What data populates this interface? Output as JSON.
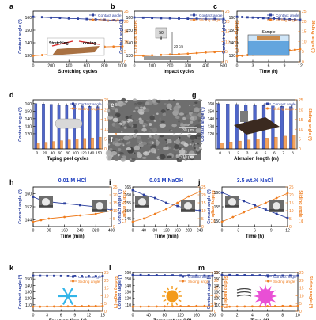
{
  "colors": {
    "contact": "#2b3f9e",
    "sliding": "#ef7d1f",
    "bar_contact": "#4f66c8",
    "bar_sliding": "#f5a35c",
    "hcl": "#1f3fbf",
    "naoh": "#1f3fbf",
    "nacl": "#1f3fbf",
    "snow": "#33b5e8",
    "sun": "#f39a1a",
    "uv": "#e94fd5",
    "water": "#3f8fd6"
  },
  "legend": {
    "contact": "Contact angle",
    "sliding": "Sliding angle"
  },
  "chart_data": [
    {
      "id": "a",
      "type": "line",
      "letter": "a",
      "xlabel": "Stretching cycles",
      "ylabel": "Contact angle (°)",
      "y2label": "Sliding angle (°)",
      "xlim": [
        0,
        1000
      ],
      "xticks": [
        0,
        200,
        400,
        600,
        800,
        1000
      ],
      "ylim": [
        125,
        165
      ],
      "yticks": [
        130,
        140,
        150,
        160
      ],
      "y2lim": [
        0,
        25
      ],
      "y2ticks": [
        0,
        5,
        10,
        15,
        20,
        25
      ],
      "series": [
        {
          "name": "Contact angle",
          "axis": "left",
          "x": [
            0,
            100,
            200,
            300,
            400,
            500,
            600,
            700,
            800,
            900,
            1000
          ],
          "y": [
            160.5,
            160.2,
            159.8,
            159.6,
            159.2,
            159,
            158.7,
            158.4,
            158.1,
            157.8,
            157.5
          ]
        },
        {
          "name": "Sliding angle",
          "axis": "right",
          "x": [
            0,
            100,
            200,
            300,
            400,
            500,
            600,
            700,
            800,
            900,
            1000
          ],
          "y": [
            3,
            3.3,
            3.8,
            4.3,
            5,
            5.8,
            6.5,
            7,
            7.4,
            7.5,
            7.6
          ]
        }
      ],
      "inset_text": [
        "Stretching",
        "Loosing"
      ]
    },
    {
      "id": "b",
      "type": "line",
      "letter": "b",
      "xlabel": "Impact cycles",
      "ylabel": "Contact angle (°)",
      "y2label": "Sliding angle (°)",
      "xlim": [
        0,
        500
      ],
      "xticks": [
        0,
        100,
        200,
        300,
        400,
        500
      ],
      "ylim": [
        125,
        165
      ],
      "yticks": [
        130,
        140,
        150,
        160
      ],
      "y2lim": [
        0,
        25
      ],
      "y2ticks": [
        0,
        5,
        10,
        15,
        20,
        25
      ],
      "series": [
        {
          "name": "Contact angle",
          "axis": "left",
          "x": [
            0,
            50,
            100,
            150,
            200,
            250,
            300,
            350,
            400,
            450,
            500
          ],
          "y": [
            160,
            159.8,
            159.6,
            159.4,
            159.3,
            159.1,
            159,
            158.9,
            158.8,
            158.8,
            158.7
          ]
        },
        {
          "name": "Sliding angle",
          "axis": "right",
          "x": [
            0,
            50,
            100,
            150,
            200,
            250,
            300,
            350,
            400,
            450,
            500
          ],
          "y": [
            3,
            3,
            3.2,
            3.4,
            3.6,
            3.8,
            4,
            4.3,
            4.6,
            4.8,
            5
          ]
        }
      ],
      "inset_text": [
        "50",
        "g",
        "20 cm"
      ]
    },
    {
      "id": "c",
      "type": "line",
      "letter": "c",
      "xlabel": "Time (h)",
      "ylabel": "Contact angle (°)",
      "y2label": "Sliding angle (°)",
      "xlim": [
        0,
        12
      ],
      "xticks": [
        0,
        3,
        6,
        9,
        12
      ],
      "ylim": [
        125,
        165
      ],
      "yticks": [
        130,
        140,
        150,
        160
      ],
      "y2lim": [
        0,
        25
      ],
      "y2ticks": [
        0,
        5,
        10,
        15,
        20,
        25
      ],
      "series": [
        {
          "name": "Contact angle",
          "axis": "left",
          "x": [
            0,
            1,
            2,
            3,
            4,
            5,
            6,
            7,
            8,
            9,
            10,
            11,
            12
          ],
          "y": [
            160.5,
            160.3,
            160.1,
            159.9,
            159.7,
            159.5,
            159.3,
            159.1,
            158.9,
            158.7,
            158.5,
            158.3,
            158.1
          ]
        },
        {
          "name": "Sliding angle",
          "axis": "right",
          "x": [
            0,
            1,
            2,
            3,
            4,
            5,
            6,
            7,
            8,
            9,
            10,
            11,
            12
          ],
          "y": [
            2.8,
            3,
            3.3,
            3.5,
            3.8,
            4.1,
            4.4,
            4.7,
            5,
            5.3,
            5.6,
            5.9,
            6.2
          ]
        }
      ],
      "inset_text": [
        "Sample"
      ]
    },
    {
      "id": "d",
      "type": "bar",
      "letter": "d",
      "xlabel": "Taping peel cycles",
      "ylabel": "Contact angle (°)",
      "y2label": "Sliding angle (°)",
      "categories": [
        "0",
        "20",
        "40",
        "60",
        "80",
        "100",
        "120",
        "140",
        "150"
      ],
      "ylim": [
        100,
        165
      ],
      "yticks": [
        120,
        130,
        140,
        150,
        160
      ],
      "y2lim": [
        0,
        25
      ],
      "y2ticks": [
        0,
        5,
        10,
        15,
        20,
        25
      ],
      "series": [
        {
          "name": "Contact angle",
          "axis": "left",
          "values": [
            160,
            159.5,
            159,
            158.5,
            158,
            157.5,
            157,
            156.5,
            156
          ]
        },
        {
          "name": "Sliding angle",
          "axis": "right",
          "values": [
            3,
            3.4,
            3.8,
            4.2,
            4.6,
            5,
            5.3,
            5.6,
            6
          ]
        }
      ]
    },
    {
      "id": "e",
      "type": "image",
      "letter": "e",
      "scale_label": "30 μm"
    },
    {
      "id": "f",
      "type": "image",
      "letter": "f",
      "scale_label": "10 μm"
    },
    {
      "id": "g",
      "type": "bar",
      "letter": "g",
      "xlabel": "Abrasion length (m)",
      "ylabel": "Contact angle (°)",
      "y2label": "Sliding angle (°)",
      "categories": [
        "0",
        "1",
        "2",
        "3",
        "4",
        "5",
        "6",
        "7",
        "8"
      ],
      "ylim": [
        100,
        165
      ],
      "yticks": [
        120,
        130,
        140,
        150,
        160
      ],
      "y2lim": [
        0,
        25
      ],
      "y2ticks": [
        0,
        5,
        10,
        15,
        20,
        25
      ],
      "series": [
        {
          "name": "Contact angle",
          "axis": "left",
          "values": [
            160,
            159.5,
            159,
            158.5,
            158,
            157.5,
            157,
            156.5,
            156
          ]
        },
        {
          "name": "Sliding angle",
          "axis": "right",
          "values": [
            3,
            3.5,
            4,
            4.5,
            5,
            5.5,
            6,
            6.5,
            7
          ]
        }
      ]
    },
    {
      "id": "h",
      "type": "line",
      "letter": "h",
      "title": "0.01 M HCl",
      "xlabel": "Time (min)",
      "ylabel": "Contact angle (°)",
      "y2label": "Sliding angle (°)",
      "xlim": [
        0,
        400
      ],
      "xticks": [
        0,
        80,
        160,
        240,
        320,
        400
      ],
      "ylim": [
        140,
        164
      ],
      "yticks": [
        144,
        152,
        160
      ],
      "y2lim": [
        0,
        25
      ],
      "y2ticks": [
        0,
        5,
        10,
        15,
        20,
        25
      ],
      "series": [
        {
          "name": "Contact angle",
          "axis": "left",
          "x": [
            0,
            40,
            80,
            160,
            240,
            320,
            400
          ],
          "y": [
            158,
            156,
            155,
            154,
            153,
            152,
            150
          ]
        },
        {
          "name": "Sliding angle",
          "axis": "right",
          "x": [
            0,
            40,
            80,
            160,
            240,
            320,
            400
          ],
          "y": [
            3,
            4,
            5,
            6,
            7,
            8,
            10
          ]
        }
      ]
    },
    {
      "id": "i",
      "type": "line",
      "letter": "i",
      "title": "0.01 M NaOH",
      "xlabel": "Time (min)",
      "ylabel": "Contact angle (°)",
      "y2label": "Sliding angle (°)",
      "xlim": [
        0,
        240
      ],
      "xticks": [
        0,
        40,
        80,
        120,
        160,
        200,
        240
      ],
      "ylim": [
        140,
        165
      ],
      "yticks": [
        145,
        150,
        155,
        160,
        165
      ],
      "y2lim": [
        0,
        25
      ],
      "y2ticks": [
        0,
        5,
        10,
        15,
        20,
        25
      ],
      "series": [
        {
          "name": "Contact angle",
          "axis": "left",
          "x": [
            0,
            40,
            80,
            120,
            160,
            200,
            240
          ],
          "y": [
            163,
            160,
            158,
            155,
            153,
            151,
            150
          ]
        },
        {
          "name": "Sliding angle",
          "axis": "right",
          "x": [
            0,
            40,
            80,
            120,
            160,
            200,
            240
          ],
          "y": [
            3,
            5,
            8,
            11,
            15,
            19,
            22
          ]
        }
      ]
    },
    {
      "id": "j",
      "type": "line",
      "letter": "j",
      "title": "3.5 wt.% NaCl",
      "xlabel": "Time (h)",
      "ylabel": "Contact angle (°)",
      "y2label": "Sliding angle (°)",
      "xlim": [
        0,
        12
      ],
      "xticks": [
        0,
        3,
        6,
        9,
        12
      ],
      "ylim": [
        148,
        162
      ],
      "yticks": [
        150,
        155,
        160
      ],
      "y2lim": [
        0,
        25
      ],
      "y2ticks": [
        0,
        5,
        10,
        15,
        20,
        25
      ],
      "series": [
        {
          "name": "Contact angle",
          "axis": "left",
          "x": [
            0,
            2,
            4,
            6,
            8,
            10,
            12
          ],
          "y": [
            160,
            158.5,
            157,
            155.5,
            154,
            152.5,
            151
          ]
        },
        {
          "name": "Sliding angle",
          "axis": "right",
          "x": [
            0,
            2,
            4,
            6,
            8,
            10,
            12
          ],
          "y": [
            3,
            6,
            9,
            12,
            15,
            18,
            21
          ]
        }
      ]
    },
    {
      "id": "k",
      "type": "line",
      "letter": "k",
      "xlabel": "Freezing time (d)",
      "ylabel": "Contact angle (°)",
      "y2label": "Sliding angle (°)",
      "xlim": [
        0,
        15
      ],
      "xticks": [
        0,
        3,
        6,
        9,
        12,
        15
      ],
      "ylim": [
        100,
        160
      ],
      "yticks": [
        110,
        120,
        130,
        140,
        150
      ],
      "y2lim": [
        0,
        25
      ],
      "y2ticks": [
        0,
        5,
        10,
        15,
        20,
        25
      ],
      "series": [
        {
          "name": "Contact angle",
          "axis": "left",
          "x": [
            0,
            1.5,
            3,
            4.5,
            6,
            7.5,
            9,
            10.5,
            12,
            13.5,
            15
          ],
          "y": [
            155,
            155,
            154.8,
            154.8,
            154.7,
            154.6,
            154.6,
            154.5,
            154.5,
            154.4,
            154.4
          ]
        },
        {
          "name": "Sliding angle",
          "axis": "right",
          "x": [
            0,
            1.5,
            3,
            4.5,
            6,
            7.5,
            9,
            10.5,
            12,
            13.5,
            15
          ],
          "y": [
            3,
            3,
            3.1,
            3.1,
            3.2,
            3.2,
            3.3,
            3.3,
            3.4,
            3.4,
            3.5
          ]
        }
      ]
    },
    {
      "id": "l",
      "type": "line",
      "letter": "l",
      "xlabel": "Temperature (°C)",
      "ylabel": "Contact angle (°)",
      "y2label": "Sliding angle (°)",
      "xlim": [
        0,
        200
      ],
      "xticks": [
        0,
        40,
        80,
        120,
        160,
        200
      ],
      "ylim": [
        100,
        160
      ],
      "yticks": [
        110,
        120,
        130,
        140,
        150,
        160
      ],
      "y2lim": [
        0,
        25
      ],
      "y2ticks": [
        0,
        5,
        10,
        15,
        20,
        25
      ],
      "series": [
        {
          "name": "Contact angle",
          "axis": "left",
          "x": [
            0,
            20,
            40,
            60,
            80,
            100,
            120,
            140,
            160,
            180,
            200
          ],
          "y": [
            156,
            156,
            155.8,
            155.8,
            155.6,
            155.6,
            155.4,
            155.4,
            155.2,
            155.2,
            155
          ]
        },
        {
          "name": "Sliding angle",
          "axis": "right",
          "x": [
            0,
            20,
            40,
            60,
            80,
            100,
            120,
            140,
            160,
            180,
            200
          ],
          "y": [
            3,
            3,
            3.1,
            3.1,
            3.2,
            3.2,
            3.3,
            3.3,
            3.4,
            3.4,
            3.5
          ]
        }
      ]
    },
    {
      "id": "m",
      "type": "line",
      "letter": "m",
      "xlabel": "Time (d)",
      "ylabel": "Contact angle (°)",
      "y2label": "Sliding angle (°)",
      "xlim": [
        0,
        10
      ],
      "xticks": [
        0,
        2,
        4,
        6,
        8,
        10
      ],
      "ylim": [
        100,
        160
      ],
      "yticks": [
        110,
        120,
        130,
        140,
        150,
        160
      ],
      "y2lim": [
        0,
        25
      ],
      "y2ticks": [
        0,
        5,
        10,
        15,
        20,
        25
      ],
      "series": [
        {
          "name": "Contact angle",
          "axis": "left",
          "x": [
            0,
            1,
            2,
            3,
            4,
            5,
            6,
            7,
            8,
            9,
            10
          ],
          "y": [
            156,
            156,
            155.8,
            155.8,
            155.6,
            155.6,
            155.4,
            155.4,
            155.2,
            155.2,
            155
          ]
        },
        {
          "name": "Sliding angle",
          "axis": "right",
          "x": [
            0,
            1,
            2,
            3,
            4,
            5,
            6,
            7,
            8,
            9,
            10
          ],
          "y": [
            3,
            3,
            3.1,
            3.1,
            3.2,
            3.2,
            3.3,
            3.3,
            3.4,
            3.4,
            3.5
          ]
        }
      ]
    }
  ]
}
